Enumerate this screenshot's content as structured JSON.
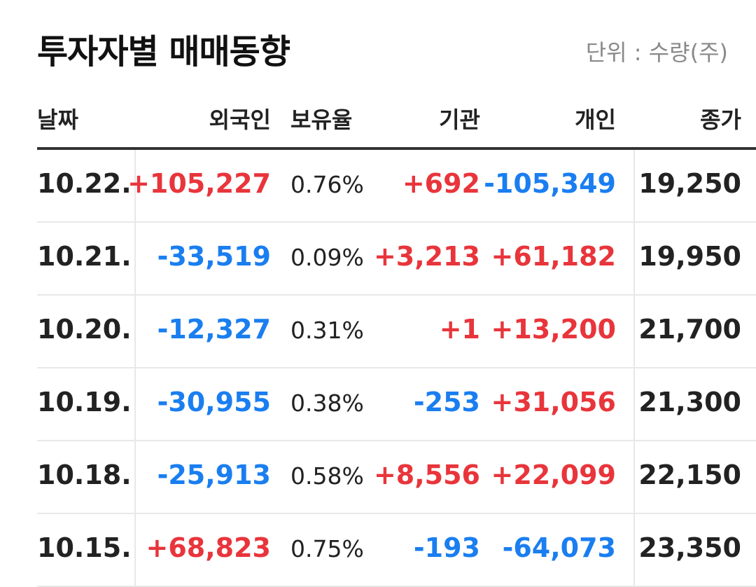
{
  "title": "투자자별 매매동향",
  "unit": "단위 : 수량(주)",
  "columns": {
    "date": "날짜",
    "foreign": "외국인",
    "ratio": "보유율",
    "institution": "기관",
    "individual": "개인",
    "close": "종가"
  },
  "colors": {
    "up": "#e8353b",
    "down": "#1a7ef0",
    "text": "#222222",
    "muted": "#8a8a8a"
  },
  "rows": [
    {
      "date": "10.22.",
      "foreign": "+105,227",
      "ratio": "0.76%",
      "institution": "+692",
      "individual": "-105,349",
      "close": "19,250"
    },
    {
      "date": "10.21.",
      "foreign": "-33,519",
      "ratio": "0.09%",
      "institution": "+3,213",
      "individual": "+61,182",
      "close": "19,950"
    },
    {
      "date": "10.20.",
      "foreign": "-12,327",
      "ratio": "0.31%",
      "institution": "+1",
      "individual": "+13,200",
      "close": "21,700"
    },
    {
      "date": "10.19.",
      "foreign": "-30,955",
      "ratio": "0.38%",
      "institution": "-253",
      "individual": "+31,056",
      "close": "21,300"
    },
    {
      "date": "10.18.",
      "foreign": "-25,913",
      "ratio": "0.58%",
      "institution": "+8,556",
      "individual": "+22,099",
      "close": "22,150"
    },
    {
      "date": "10.15.",
      "foreign": "+68,823",
      "ratio": "0.75%",
      "institution": "-193",
      "individual": "-64,073",
      "close": "23,350"
    }
  ]
}
